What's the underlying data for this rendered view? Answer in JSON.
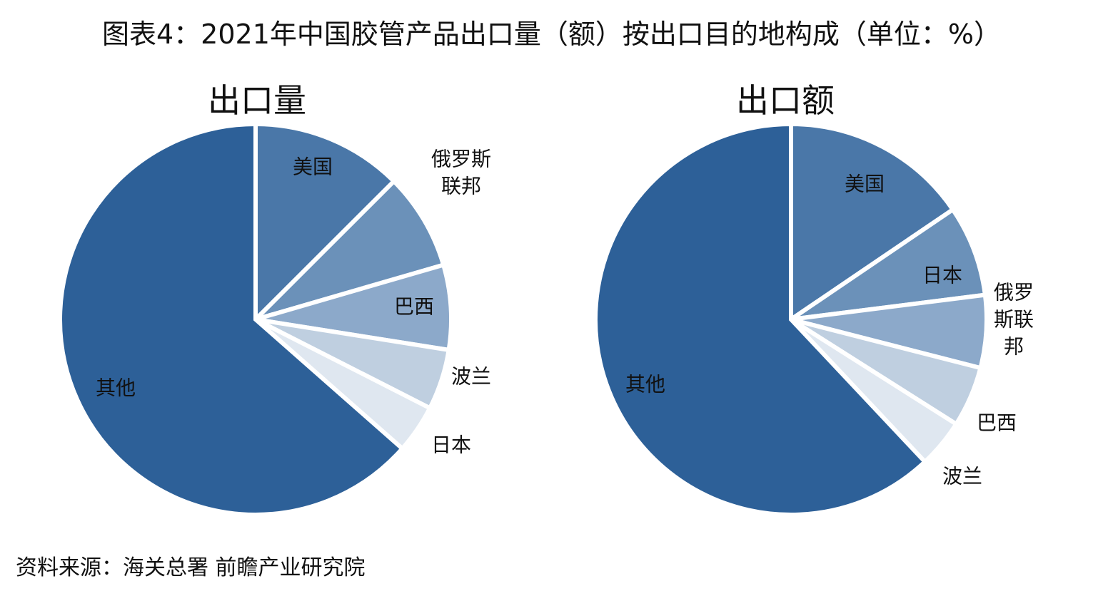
{
  "title": "图表4：2021年中国胶管产品出口量（额）按出口目的地构成（单位：%）",
  "source": "资料来源：海关总署 前瞻产业研究院",
  "chart_data": [
    {
      "type": "pie",
      "title": "出口量",
      "start": "12 o'clock, clockwise",
      "slices": [
        {
          "label": "美国",
          "lines": [
            "美国"
          ],
          "value": 12.5,
          "color": "#4A77A8"
        },
        {
          "label": "俄罗斯联邦",
          "lines": [
            "俄罗斯",
            "联邦"
          ],
          "value": 8.0,
          "color": "#6B91B9"
        },
        {
          "label": "巴西",
          "lines": [
            "巴西"
          ],
          "value": 7.0,
          "color": "#8CA9CA"
        },
        {
          "label": "波兰",
          "lines": [
            "波兰"
          ],
          "value": 5.0,
          "color": "#BFCFE0"
        },
        {
          "label": "日本",
          "lines": [
            "日本"
          ],
          "value": 4.0,
          "color": "#DFE7F0"
        },
        {
          "label": "其他",
          "lines": [
            "其他"
          ],
          "value": 63.5,
          "color": "#2D6098"
        }
      ]
    },
    {
      "type": "pie",
      "title": "出口额",
      "start": "12 o'clock, clockwise",
      "slices": [
        {
          "label": "美国",
          "lines": [
            "美国"
          ],
          "value": 15.5,
          "color": "#4A77A8"
        },
        {
          "label": "日本",
          "lines": [
            "日本"
          ],
          "value": 7.5,
          "color": "#6B91B9"
        },
        {
          "label": "俄罗斯联邦",
          "lines": [
            "俄罗",
            "斯联",
            "邦"
          ],
          "value": 6.0,
          "color": "#8CA9CA"
        },
        {
          "label": "巴西",
          "lines": [
            "巴西"
          ],
          "value": 5.0,
          "color": "#BFCFE0"
        },
        {
          "label": "波兰",
          "lines": [
            "波兰"
          ],
          "value": 4.0,
          "color": "#DFE7F0"
        },
        {
          "label": "其他",
          "lines": [
            "其他"
          ],
          "value": 62.0,
          "color": "#2D6098"
        }
      ]
    }
  ]
}
